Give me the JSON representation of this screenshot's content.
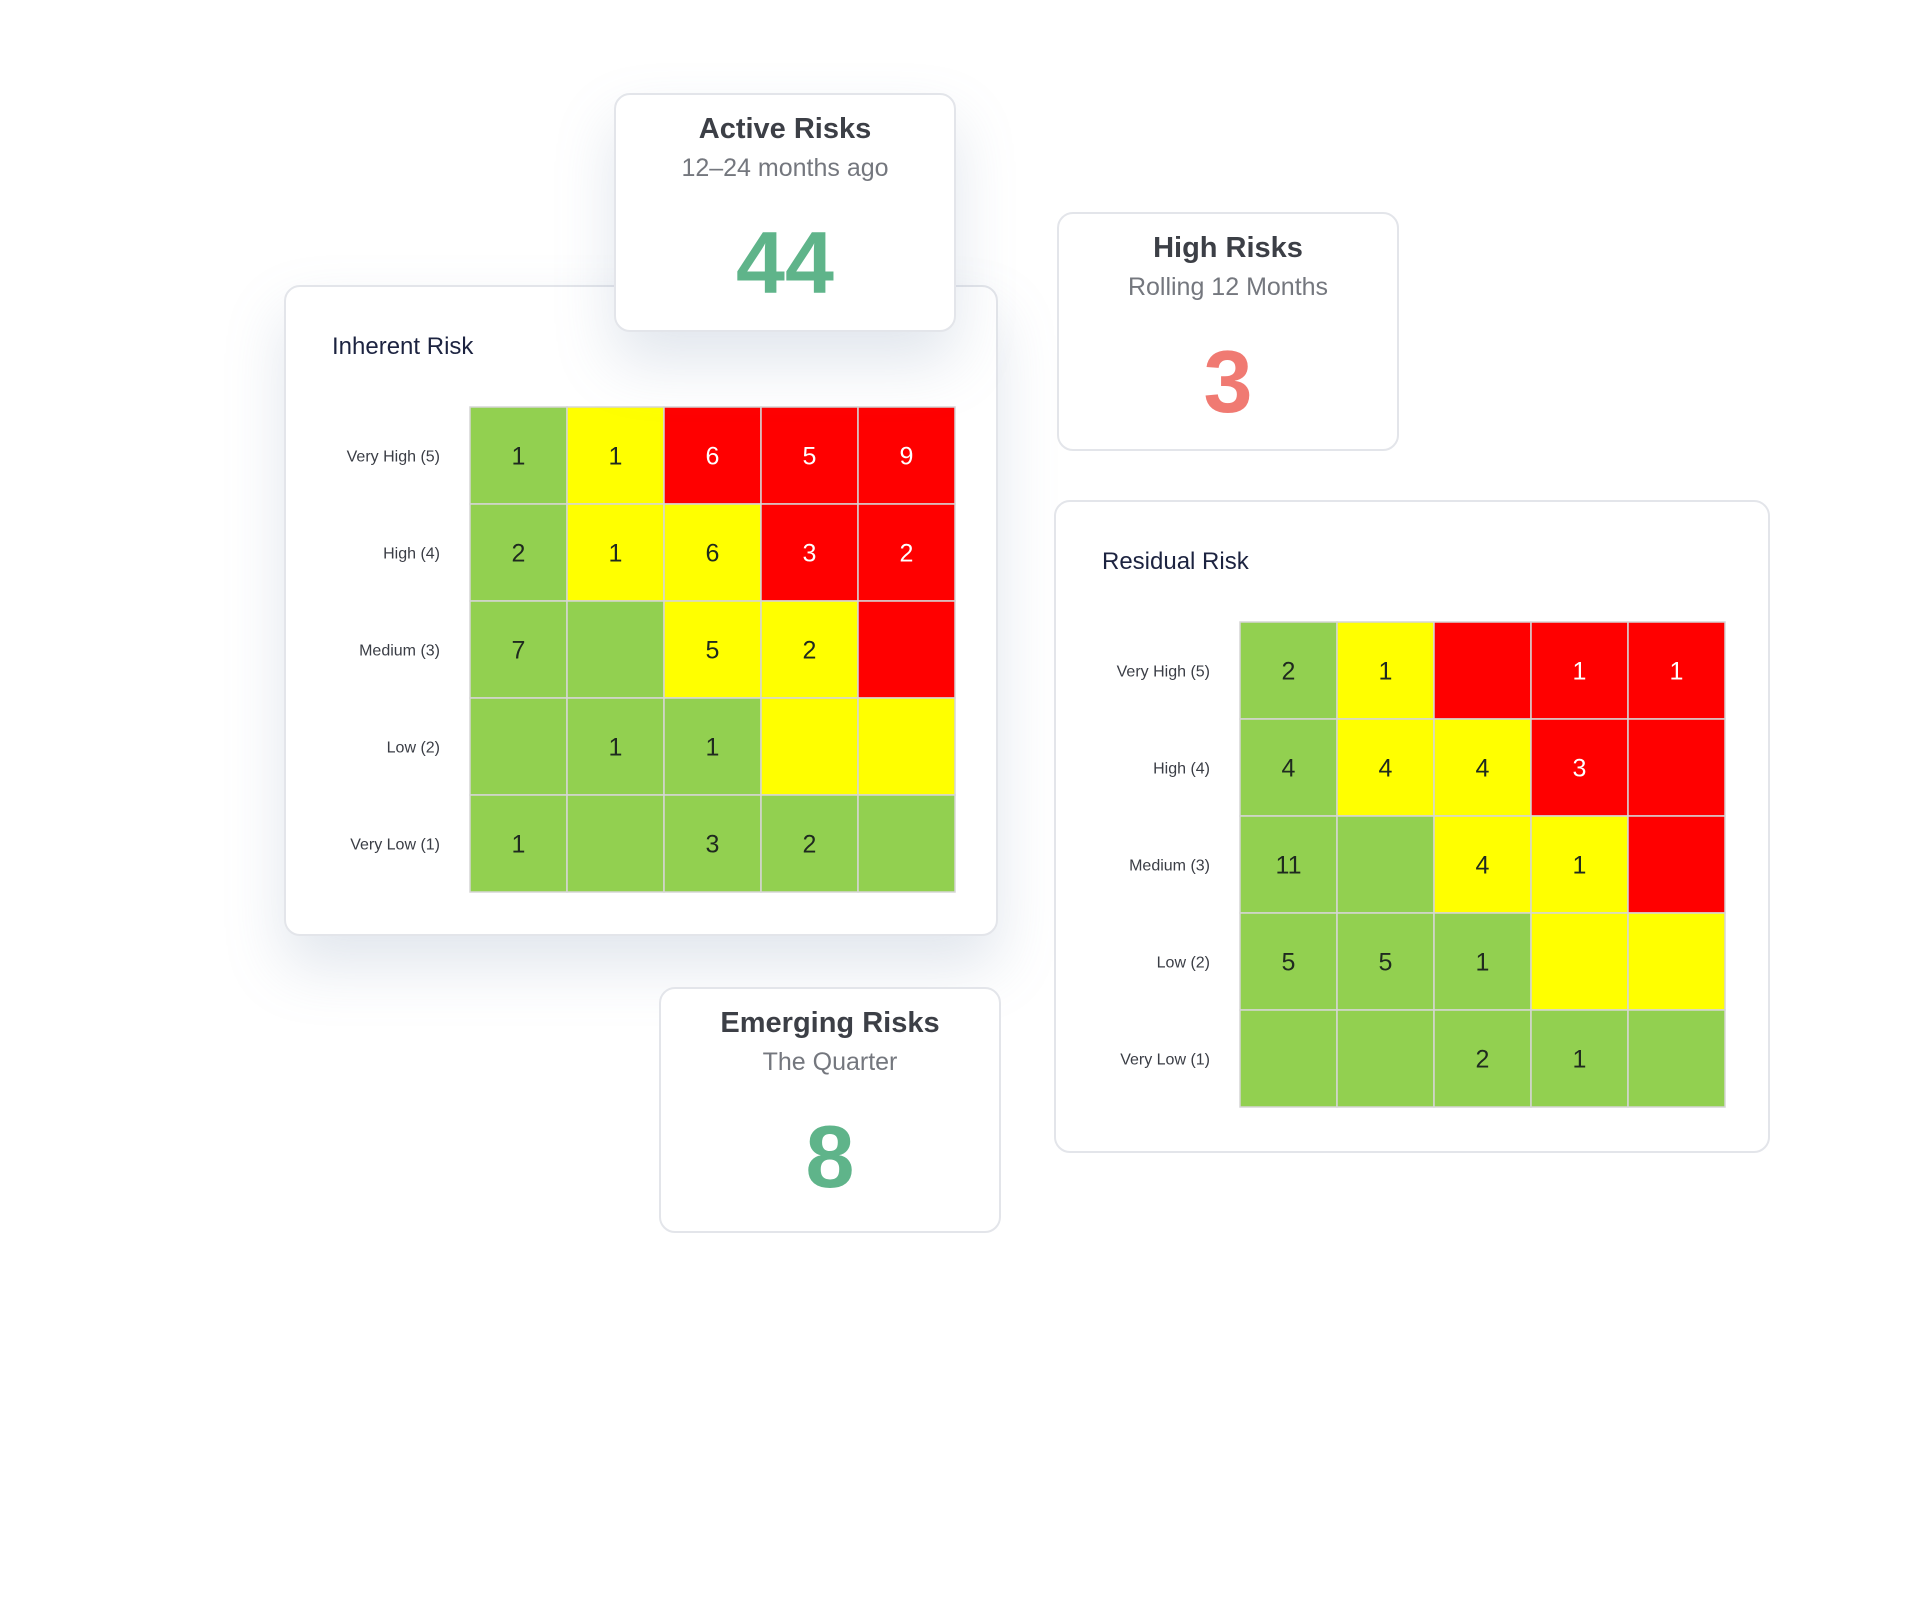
{
  "colors": {
    "green": "#92d050",
    "yellow": "#ffff00",
    "red": "#ff0000",
    "kpi_green": "#5fb48a",
    "kpi_red": "#f07a72"
  },
  "active_risks": {
    "title": "Active Risks",
    "subtitle": "12–24 months ago",
    "value": "44"
  },
  "high_risks": {
    "title": "High Risks",
    "subtitle": "Rolling 12 Months",
    "value": "3"
  },
  "emerging_risks": {
    "title": "Emerging Risks",
    "subtitle": "The Quarter",
    "value": "8"
  },
  "inherent_risk": {
    "title": "Inherent Risk",
    "row_labels": [
      "Very High (5)",
      "High (4)",
      "Medium (3)",
      "Low (2)",
      "Very Low (1)"
    ],
    "cells": [
      [
        {
          "v": "1",
          "c": "green"
        },
        {
          "v": "1",
          "c": "yellow"
        },
        {
          "v": "6",
          "c": "red"
        },
        {
          "v": "5",
          "c": "red"
        },
        {
          "v": "9",
          "c": "red"
        }
      ],
      [
        {
          "v": "2",
          "c": "green"
        },
        {
          "v": "1",
          "c": "yellow"
        },
        {
          "v": "6",
          "c": "yellow"
        },
        {
          "v": "3",
          "c": "red"
        },
        {
          "v": "2",
          "c": "red"
        }
      ],
      [
        {
          "v": "7",
          "c": "green"
        },
        {
          "v": "",
          "c": "green"
        },
        {
          "v": "5",
          "c": "yellow"
        },
        {
          "v": "2",
          "c": "yellow"
        },
        {
          "v": "",
          "c": "red"
        }
      ],
      [
        {
          "v": "",
          "c": "green"
        },
        {
          "v": "1",
          "c": "green"
        },
        {
          "v": "1",
          "c": "green"
        },
        {
          "v": "",
          "c": "yellow"
        },
        {
          "v": "",
          "c": "yellow"
        }
      ],
      [
        {
          "v": "1",
          "c": "green"
        },
        {
          "v": "",
          "c": "green"
        },
        {
          "v": "3",
          "c": "green"
        },
        {
          "v": "2",
          "c": "green"
        },
        {
          "v": "",
          "c": "green"
        }
      ]
    ]
  },
  "residual_risk": {
    "title": "Residual Risk",
    "row_labels": [
      "Very High (5)",
      "High (4)",
      "Medium (3)",
      "Low (2)",
      "Very Low (1)"
    ],
    "cells": [
      [
        {
          "v": "2",
          "c": "green"
        },
        {
          "v": "1",
          "c": "yellow"
        },
        {
          "v": "",
          "c": "red"
        },
        {
          "v": "1",
          "c": "red"
        },
        {
          "v": "1",
          "c": "red"
        }
      ],
      [
        {
          "v": "4",
          "c": "green"
        },
        {
          "v": "4",
          "c": "yellow"
        },
        {
          "v": "4",
          "c": "yellow"
        },
        {
          "v": "3",
          "c": "red"
        },
        {
          "v": "",
          "c": "red"
        }
      ],
      [
        {
          "v": "11",
          "c": "green"
        },
        {
          "v": "",
          "c": "green"
        },
        {
          "v": "4",
          "c": "yellow"
        },
        {
          "v": "1",
          "c": "yellow"
        },
        {
          "v": "",
          "c": "red"
        }
      ],
      [
        {
          "v": "5",
          "c": "green"
        },
        {
          "v": "5",
          "c": "green"
        },
        {
          "v": "1",
          "c": "green"
        },
        {
          "v": "",
          "c": "yellow"
        },
        {
          "v": "",
          "c": "yellow"
        }
      ],
      [
        {
          "v": "",
          "c": "green"
        },
        {
          "v": "",
          "c": "green"
        },
        {
          "v": "2",
          "c": "green"
        },
        {
          "v": "1",
          "c": "green"
        },
        {
          "v": "",
          "c": "green"
        }
      ]
    ]
  }
}
